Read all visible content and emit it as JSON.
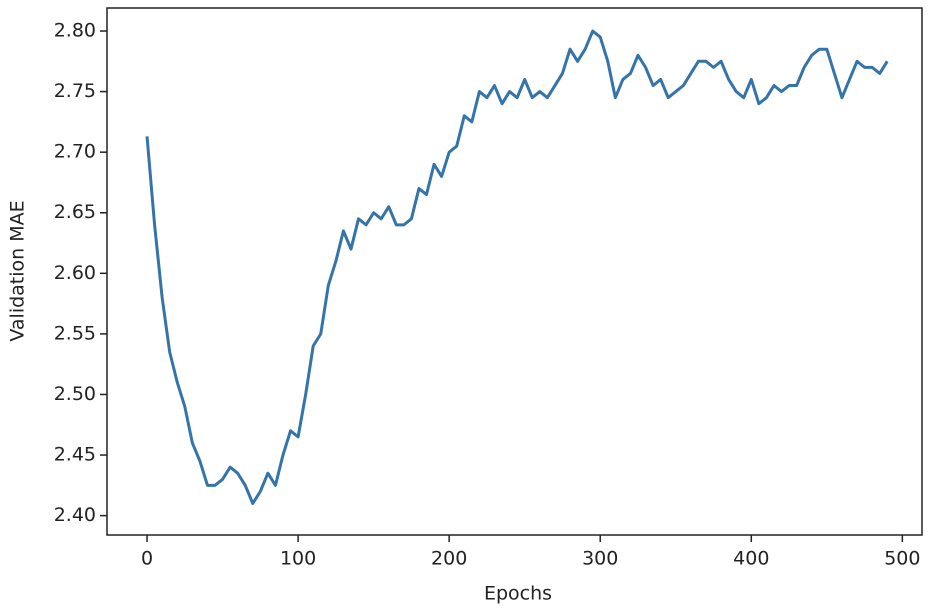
{
  "chart_data": {
    "type": "line",
    "xlabel": "Epochs",
    "ylabel": "Validation MAE",
    "x": [
      0,
      5,
      10,
      15,
      20,
      25,
      30,
      35,
      40,
      45,
      50,
      55,
      60,
      65,
      70,
      75,
      80,
      85,
      90,
      95,
      100,
      105,
      110,
      115,
      120,
      125,
      130,
      135,
      140,
      145,
      150,
      155,
      160,
      165,
      170,
      175,
      180,
      185,
      190,
      195,
      200,
      205,
      210,
      215,
      220,
      225,
      230,
      235,
      240,
      245,
      250,
      255,
      260,
      265,
      270,
      275,
      280,
      285,
      290,
      295,
      300,
      305,
      310,
      315,
      320,
      325,
      330,
      335,
      340,
      345,
      350,
      355,
      360,
      365,
      370,
      375,
      380,
      385,
      390,
      395,
      400,
      405,
      410,
      415,
      420,
      425,
      430,
      435,
      440,
      445,
      450,
      455,
      460,
      465,
      470,
      475,
      480,
      485,
      490
    ],
    "series": [
      {
        "color": "#3474a9",
        "values": [
          2.713,
          2.64,
          2.58,
          2.535,
          2.51,
          2.49,
          2.46,
          2.445,
          2.425,
          2.425,
          2.43,
          2.44,
          2.435,
          2.425,
          2.41,
          2.42,
          2.435,
          2.425,
          2.45,
          2.47,
          2.465,
          2.5,
          2.54,
          2.55,
          2.59,
          2.61,
          2.635,
          2.62,
          2.645,
          2.64,
          2.65,
          2.645,
          2.655,
          2.64,
          2.64,
          2.645,
          2.67,
          2.665,
          2.69,
          2.68,
          2.7,
          2.705,
          2.73,
          2.725,
          2.75,
          2.745,
          2.755,
          2.74,
          2.75,
          2.745,
          2.76,
          2.745,
          2.75,
          2.745,
          2.755,
          2.765,
          2.785,
          2.775,
          2.785,
          2.8,
          2.795,
          2.775,
          2.745,
          2.76,
          2.765,
          2.78,
          2.77,
          2.755,
          2.76,
          2.745,
          2.75,
          2.755,
          2.765,
          2.775,
          2.775,
          2.77,
          2.775,
          2.76,
          2.75,
          2.745,
          2.76,
          2.74,
          2.745,
          2.755,
          2.75,
          2.755,
          2.755,
          2.77,
          2.78,
          2.785,
          2.785,
          2.765,
          2.745,
          2.76,
          2.775,
          2.77,
          2.77,
          2.765,
          2.775
        ]
      }
    ],
    "xlim": [
      -26.5,
      513
    ],
    "ylim": [
      2.384,
      2.819
    ],
    "xticks": [
      0,
      100,
      200,
      300,
      400,
      500
    ],
    "yticks": [
      {
        "value": 2.4,
        "label": "2.40"
      },
      2.45,
      {
        "value": 2.5,
        "label": "2.50"
      },
      2.55,
      {
        "value": 2.6,
        "label": "2.60"
      },
      2.65,
      {
        "value": 2.7,
        "label": "2.70"
      },
      2.75,
      {
        "value": 2.8,
        "label": "2.80"
      }
    ]
  }
}
